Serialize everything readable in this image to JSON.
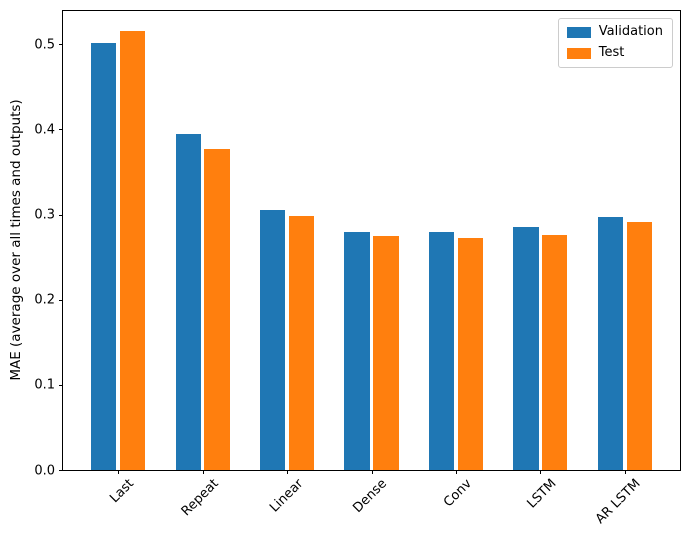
{
  "chart_data": {
    "type": "bar",
    "title": "",
    "xlabel": "",
    "ylabel": "MAE (average over all times and outputs)",
    "categories": [
      "Last",
      "Repeat",
      "Linear",
      "Dense",
      "Conv",
      "LSTM",
      "AR LSTM"
    ],
    "series": [
      {
        "name": "Validation",
        "color": "#1f77b4",
        "values": [
          0.501,
          0.395,
          0.305,
          0.28,
          0.28,
          0.285,
          0.297
        ]
      },
      {
        "name": "Test",
        "color": "#ff7f0e",
        "values": [
          0.516,
          0.377,
          0.298,
          0.275,
          0.273,
          0.276,
          0.291
        ]
      }
    ],
    "ylim": [
      0,
      0.539
    ],
    "yticks": [
      0.0,
      0.1,
      0.2,
      0.3,
      0.4,
      0.5
    ],
    "ytick_labels": [
      "0.0",
      "0.1",
      "0.2",
      "0.3",
      "0.4",
      "0.5"
    ],
    "xtick_rotation": 45,
    "grid": false,
    "legend": {
      "position": "upper right"
    },
    "colors": {
      "axis": "#000000",
      "legend_border": "#cccccc",
      "background": "#ffffff"
    }
  }
}
